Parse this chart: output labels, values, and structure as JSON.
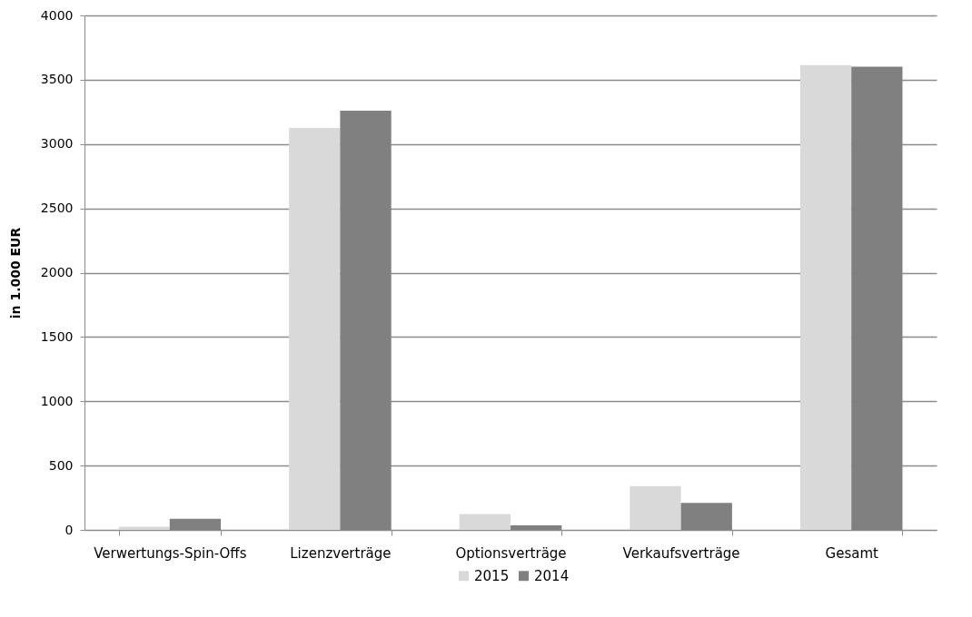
{
  "chart_data": {
    "type": "bar",
    "ylabel": "in 1.000 EUR",
    "categories": [
      "Verwertungs-Spin-Offs",
      "Lizenzverträge",
      "Optionsverträge",
      "Verkaufsverträge",
      "Gesamt"
    ],
    "series": [
      {
        "name": "2015",
        "color": "#d9d9d9",
        "values": [
          24,
          3125,
          123,
          341,
          3613
        ]
      },
      {
        "name": "2014",
        "color": "#808080",
        "values": [
          87,
          3259,
          35,
          209,
          3601
        ]
      }
    ],
    "ylim": [
      0,
      4000
    ],
    "yticks": [
      0,
      500,
      1000,
      1500,
      2000,
      2500,
      3000,
      3500,
      4000
    ],
    "grid": "y",
    "legend": "bottom"
  }
}
